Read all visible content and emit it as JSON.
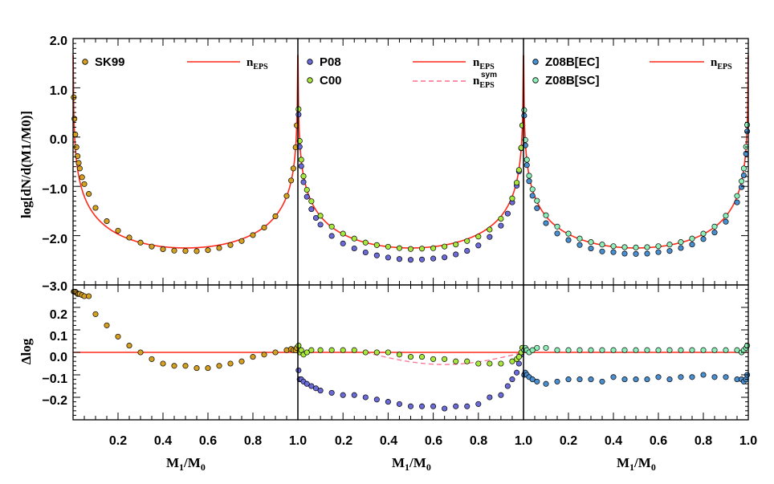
{
  "colors": {
    "eps_line": "#ff2a1a",
    "sym_line": "#ff6f8e",
    "sk99": "#d6a021",
    "p08": "#6a6ad8",
    "c00": "#a8e83c",
    "z08b_ec": "#4a8fd0",
    "z08b_sc": "#8ef0b8"
  },
  "axes": {
    "xlabel_main": "M",
    "xlabel_sub1": "1",
    "xlabel_slash": "/M",
    "xlabel_sub0": "0",
    "ylabel_top": "log[dN/d(M1/M0)]",
    "ylabel_bottom": "Δlog",
    "xticks": [
      "0.2",
      "0.4",
      "0.6",
      "0.8",
      "1.0"
    ],
    "yticks_top": [
      "2.0",
      "1.0",
      "0.0",
      "−1.0",
      "−2.0",
      "−3.0"
    ],
    "yticks_bottom": [
      "0.2",
      "0.1",
      "0.0",
      "−0.1",
      "−0.2"
    ]
  },
  "legend": {
    "n": "n",
    "eps": "EPS",
    "sym": "sym",
    "panel1": {
      "label1": "SK99"
    },
    "panel2": {
      "label1": "P08",
      "label2": "C00"
    },
    "panel3": {
      "label1": "Z08B[EC]",
      "label2": "Z08B[SC]"
    }
  },
  "chart_data": [
    {
      "type": "scatter",
      "panel": "left",
      "xlabel": "M1/M0",
      "ylabel": "log[dN/d(M1/M0)]",
      "xlim": [
        0,
        1
      ],
      "ylim_top": [
        -3,
        2
      ],
      "ylim_bottom": [
        -0.3,
        0.3
      ],
      "series": [
        {
          "name": "SK99",
          "color_key": "sk99",
          "x": [
            0.003,
            0.006,
            0.01,
            0.015,
            0.02,
            0.025,
            0.03,
            0.04,
            0.05,
            0.07,
            0.1,
            0.15,
            0.2,
            0.25,
            0.3,
            0.35,
            0.4,
            0.45,
            0.5,
            0.55,
            0.6,
            0.65,
            0.7,
            0.75,
            0.8,
            0.85,
            0.9,
            0.95,
            0.97,
            0.98,
            0.99,
            0.995
          ],
          "dlog": [
            0.27,
            0.27,
            0.27,
            0.265,
            0.26,
            0.26,
            0.26,
            0.255,
            0.25,
            0.25,
            0.17,
            0.12,
            0.07,
            0.03,
            0.0,
            -0.03,
            -0.05,
            -0.06,
            -0.06,
            -0.07,
            -0.07,
            -0.06,
            -0.05,
            -0.04,
            -0.02,
            -0.01,
            0.0,
            0.01,
            0.015,
            0.01,
            0.01,
            0.02
          ]
        }
      ],
      "lines": [
        {
          "name": "n_EPS",
          "style": "solid"
        }
      ]
    },
    {
      "type": "scatter",
      "panel": "middle",
      "xlabel": "M1/M0",
      "xlim": [
        0,
        1
      ],
      "ylim_top": [
        -3,
        2
      ],
      "ylim_bottom": [
        -0.3,
        0.3
      ],
      "series": [
        {
          "name": "P08",
          "color_key": "p08",
          "x": [
            0.003,
            0.008,
            0.015,
            0.025,
            0.04,
            0.06,
            0.08,
            0.1,
            0.15,
            0.2,
            0.25,
            0.3,
            0.35,
            0.4,
            0.45,
            0.5,
            0.55,
            0.6,
            0.65,
            0.7,
            0.75,
            0.8,
            0.85,
            0.9,
            0.93,
            0.95,
            0.97,
            0.98,
            0.99,
            0.995
          ],
          "dlog": [
            -0.08,
            -0.12,
            -0.12,
            -0.13,
            -0.14,
            -0.15,
            -0.16,
            -0.17,
            -0.18,
            -0.19,
            -0.19,
            -0.2,
            -0.21,
            -0.22,
            -0.23,
            -0.24,
            -0.24,
            -0.24,
            -0.25,
            -0.24,
            -0.24,
            -0.23,
            -0.2,
            -0.19,
            -0.15,
            -0.12,
            -0.09,
            -0.05,
            -0.01,
            0.02
          ]
        },
        {
          "name": "C00",
          "color_key": "c00",
          "x": [
            0.003,
            0.008,
            0.015,
            0.025,
            0.04,
            0.06,
            0.1,
            0.15,
            0.2,
            0.25,
            0.3,
            0.35,
            0.4,
            0.45,
            0.5,
            0.55,
            0.6,
            0.65,
            0.7,
            0.75,
            0.8,
            0.85,
            0.9,
            0.95,
            0.97,
            0.98,
            0.99,
            0.995
          ],
          "dlog": [
            0.03,
            0.0,
            0.01,
            -0.01,
            0.0,
            0.01,
            0.01,
            0.01,
            0.01,
            0.01,
            0.0,
            0.0,
            0.0,
            -0.01,
            -0.02,
            -0.02,
            -0.03,
            -0.03,
            -0.04,
            -0.04,
            -0.05,
            -0.05,
            -0.05,
            -0.04,
            -0.03,
            -0.02,
            0.0,
            0.02
          ]
        }
      ],
      "lines": [
        {
          "name": "n_EPS",
          "style": "solid"
        },
        {
          "name": "n_EPS^sym",
          "style": "dashed"
        }
      ]
    },
    {
      "type": "scatter",
      "panel": "right",
      "xlabel": "M1/M0",
      "xlim": [
        0,
        1
      ],
      "ylim_top": [
        -3,
        2
      ],
      "ylim_bottom": [
        -0.3,
        0.3
      ],
      "series": [
        {
          "name": "Z08B[EC]",
          "color_key": "z08b_ec",
          "x": [
            0.003,
            0.008,
            0.015,
            0.025,
            0.04,
            0.06,
            0.1,
            0.15,
            0.2,
            0.25,
            0.3,
            0.35,
            0.4,
            0.45,
            0.5,
            0.55,
            0.6,
            0.65,
            0.7,
            0.75,
            0.8,
            0.85,
            0.9,
            0.95,
            0.97,
            0.98,
            0.99,
            0.995
          ],
          "dlog": [
            -0.1,
            -0.09,
            -0.1,
            -0.11,
            -0.12,
            -0.13,
            -0.14,
            -0.13,
            -0.12,
            -0.12,
            -0.12,
            -0.13,
            -0.11,
            -0.12,
            -0.12,
            -0.12,
            -0.11,
            -0.12,
            -0.11,
            -0.11,
            -0.1,
            -0.11,
            -0.11,
            -0.12,
            -0.12,
            -0.13,
            -0.12,
            -0.1
          ]
        },
        {
          "name": "Z08B[SC]",
          "color_key": "z08b_sc",
          "x": [
            0.003,
            0.008,
            0.015,
            0.025,
            0.04,
            0.06,
            0.1,
            0.15,
            0.2,
            0.25,
            0.3,
            0.35,
            0.4,
            0.45,
            0.5,
            0.55,
            0.6,
            0.65,
            0.7,
            0.75,
            0.8,
            0.85,
            0.9,
            0.95,
            0.97,
            0.98,
            0.99,
            0.995
          ],
          "dlog": [
            0.01,
            0.02,
            0.01,
            0.0,
            0.01,
            0.02,
            0.02,
            0.01,
            0.01,
            0.01,
            0.01,
            0.01,
            0.01,
            0.01,
            0.01,
            0.01,
            0.01,
            0.01,
            0.01,
            0.01,
            0.01,
            0.01,
            0.01,
            0.01,
            0.0,
            0.01,
            0.02,
            0.03
          ]
        }
      ],
      "lines": [
        {
          "name": "n_EPS",
          "style": "solid"
        }
      ]
    }
  ]
}
